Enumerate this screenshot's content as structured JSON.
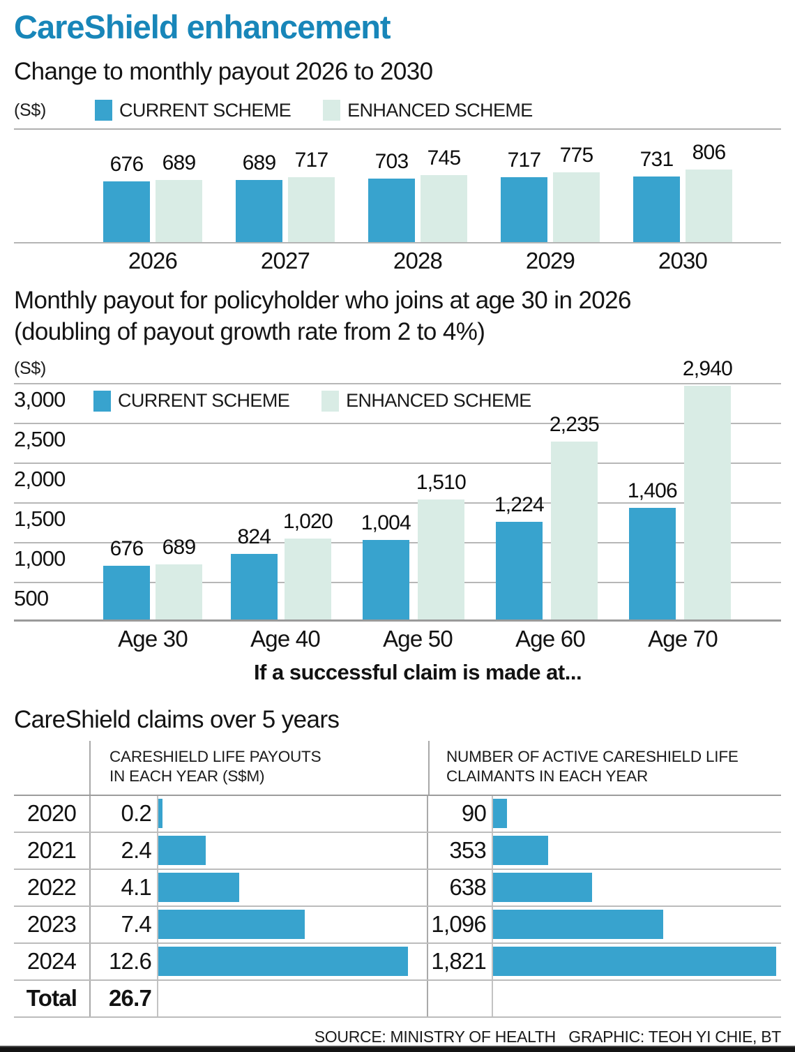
{
  "header": {
    "title": "CareShield enhancement"
  },
  "footer": {
    "source": "SOURCE: MINISTRY OF HEALTH   GRAPHIC: TEOH YI CHIE, BT"
  },
  "colors": {
    "current_scheme": "#38a3ce",
    "enhanced_scheme": "#d9ece5",
    "title_blue": "#1886b9"
  },
  "chart_data": [
    {
      "type": "bar",
      "title": "Change to monthly payout 2026 to 2030",
      "unit": "(S$)",
      "categories": [
        "2026",
        "2027",
        "2028",
        "2029",
        "2030"
      ],
      "series": [
        {
          "name": "CURRENT SCHEME",
          "values": [
            676,
            689,
            703,
            717,
            731
          ]
        },
        {
          "name": "ENHANCED SCHEME",
          "values": [
            689,
            717,
            745,
            775,
            806
          ]
        }
      ],
      "legend_position": "top",
      "grid": false,
      "ylim": [
        0,
        806
      ]
    },
    {
      "type": "bar",
      "title": "Monthly payout for policyholder who joins at age 30 in 2026\n(doubling of payout growth rate from 2 to 4%)",
      "unit": "(S$)",
      "caption": "If a successful claim is made at...",
      "categories": [
        "Age 30",
        "Age 40",
        "Age 50",
        "Age 60",
        "Age 70"
      ],
      "series": [
        {
          "name": "CURRENT SCHEME",
          "values": [
            676,
            824,
            1004,
            1224,
            1406
          ]
        },
        {
          "name": "ENHANCED SCHEME",
          "values": [
            689,
            1020,
            1510,
            2235,
            2940
          ]
        }
      ],
      "legend_position": "inside-top-left",
      "grid": true,
      "ylim": [
        0,
        3000
      ],
      "yticks": [
        3000,
        2500,
        2000,
        1500,
        1000,
        500
      ]
    },
    {
      "type": "table",
      "title": "CareShield claims over 5 years",
      "columns": [
        "CARESHIELD LIFE PAYOUTS\nIN EACH YEAR (S$M)",
        "NUMBER OF ACTIVE CARESHIELD LIFE\nCLAIMANTS IN EACH YEAR"
      ],
      "rows": [
        {
          "year": "2020",
          "payout": 0.2,
          "claimants": 90
        },
        {
          "year": "2021",
          "payout": 2.4,
          "claimants": 353
        },
        {
          "year": "2022",
          "payout": 4.1,
          "claimants": 638
        },
        {
          "year": "2023",
          "payout": 7.4,
          "claimants": 1096
        },
        {
          "year": "2024",
          "payout": 12.6,
          "claimants": 1821
        }
      ],
      "total": {
        "label": "Total",
        "payout": 26.7
      }
    }
  ]
}
